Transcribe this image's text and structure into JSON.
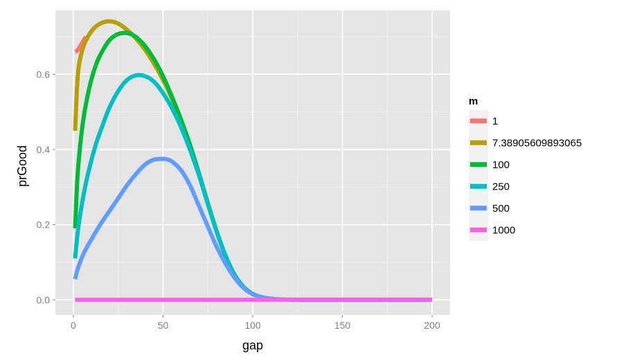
{
  "chart_data": {
    "type": "line",
    "xlabel": "gap",
    "ylabel": "prGood",
    "xlim": [
      -10,
      210
    ],
    "ylim": [
      -0.04,
      0.77
    ],
    "x_ticks": [
      0,
      50,
      100,
      150,
      200
    ],
    "x_tick_labels": [
      "0",
      "50",
      "100",
      "150",
      "200"
    ],
    "y_ticks": [
      0.0,
      0.2,
      0.4,
      0.6
    ],
    "y_tick_labels": [
      "0.0",
      "0.2",
      "0.4",
      "0.6"
    ],
    "grid": true,
    "legend": {
      "title": "m",
      "placement": "right"
    },
    "series": [
      {
        "name": "1",
        "color": "#F8766D",
        "x": [
          1,
          2,
          3,
          4,
          5,
          6,
          7
        ],
        "y": [
          0.66,
          0.662,
          0.668,
          0.676,
          0.684,
          0.692,
          0.7
        ]
      },
      {
        "name": "7.38905609893065",
        "color": "#B79F00",
        "x": [
          1,
          2,
          3,
          5,
          7,
          10,
          13,
          16,
          20,
          25,
          30,
          35,
          40,
          45,
          50,
          55,
          60,
          65,
          70,
          75,
          80,
          85,
          90,
          95,
          100,
          105,
          110,
          115,
          120,
          130,
          140,
          150,
          160,
          170,
          180,
          190,
          200
        ],
        "y": [
          0.45,
          0.56,
          0.62,
          0.665,
          0.69,
          0.714,
          0.729,
          0.737,
          0.741,
          0.735,
          0.718,
          0.695,
          0.665,
          0.628,
          0.585,
          0.535,
          0.478,
          0.412,
          0.335,
          0.255,
          0.18,
          0.115,
          0.065,
          0.033,
          0.015,
          0.007,
          0.003,
          0.001,
          0.0005,
          0,
          0,
          0,
          0,
          0,
          0,
          0,
          0
        ]
      },
      {
        "name": "100",
        "color": "#00BA38",
        "x": [
          1,
          2,
          3,
          5,
          7,
          10,
          13,
          16,
          20,
          24,
          28,
          32,
          36,
          40,
          45,
          50,
          55,
          60,
          65,
          70,
          75,
          80,
          85,
          90,
          95,
          100,
          105,
          110,
          115,
          120,
          130,
          140,
          150,
          160,
          170,
          180,
          190,
          200
        ],
        "y": [
          0.19,
          0.3,
          0.37,
          0.46,
          0.52,
          0.585,
          0.63,
          0.66,
          0.69,
          0.705,
          0.71,
          0.707,
          0.695,
          0.675,
          0.64,
          0.595,
          0.54,
          0.48,
          0.413,
          0.337,
          0.257,
          0.181,
          0.116,
          0.066,
          0.034,
          0.016,
          0.007,
          0.003,
          0.001,
          0.0004,
          0,
          0,
          0,
          0,
          0,
          0,
          0,
          0
        ]
      },
      {
        "name": "250",
        "color": "#00BFC4",
        "x": [
          1,
          2,
          3,
          5,
          7,
          10,
          13,
          16,
          20,
          25,
          30,
          35,
          40,
          45,
          50,
          55,
          60,
          65,
          70,
          75,
          80,
          85,
          90,
          95,
          100,
          105,
          110,
          115,
          120,
          130,
          140,
          150,
          160,
          170,
          180,
          190,
          200
        ],
        "y": [
          0.11,
          0.16,
          0.2,
          0.26,
          0.31,
          0.37,
          0.42,
          0.46,
          0.51,
          0.555,
          0.585,
          0.597,
          0.595,
          0.58,
          0.55,
          0.51,
          0.46,
          0.4,
          0.332,
          0.255,
          0.18,
          0.115,
          0.065,
          0.033,
          0.015,
          0.007,
          0.003,
          0.001,
          0.0005,
          0,
          0,
          0,
          0,
          0,
          0,
          0,
          0
        ]
      },
      {
        "name": "500",
        "color": "#619CFF",
        "x": [
          1,
          2,
          3,
          5,
          7,
          10,
          15,
          20,
          25,
          30,
          35,
          40,
          45,
          50,
          52,
          55,
          60,
          65,
          70,
          75,
          80,
          85,
          90,
          95,
          100,
          105,
          110,
          115,
          120,
          130,
          140,
          150,
          160,
          170,
          180,
          190,
          200
        ],
        "y": [
          0.055,
          0.075,
          0.09,
          0.115,
          0.135,
          0.16,
          0.2,
          0.235,
          0.27,
          0.305,
          0.335,
          0.36,
          0.373,
          0.375,
          0.374,
          0.368,
          0.345,
          0.305,
          0.25,
          0.195,
          0.14,
          0.095,
          0.058,
          0.031,
          0.015,
          0.007,
          0.003,
          0.001,
          0.0005,
          0,
          0,
          0,
          0,
          0,
          0,
          0,
          0
        ]
      },
      {
        "name": "1000",
        "color": "#F564E3",
        "x": [
          1,
          200
        ],
        "y": [
          0,
          0
        ]
      }
    ]
  }
}
